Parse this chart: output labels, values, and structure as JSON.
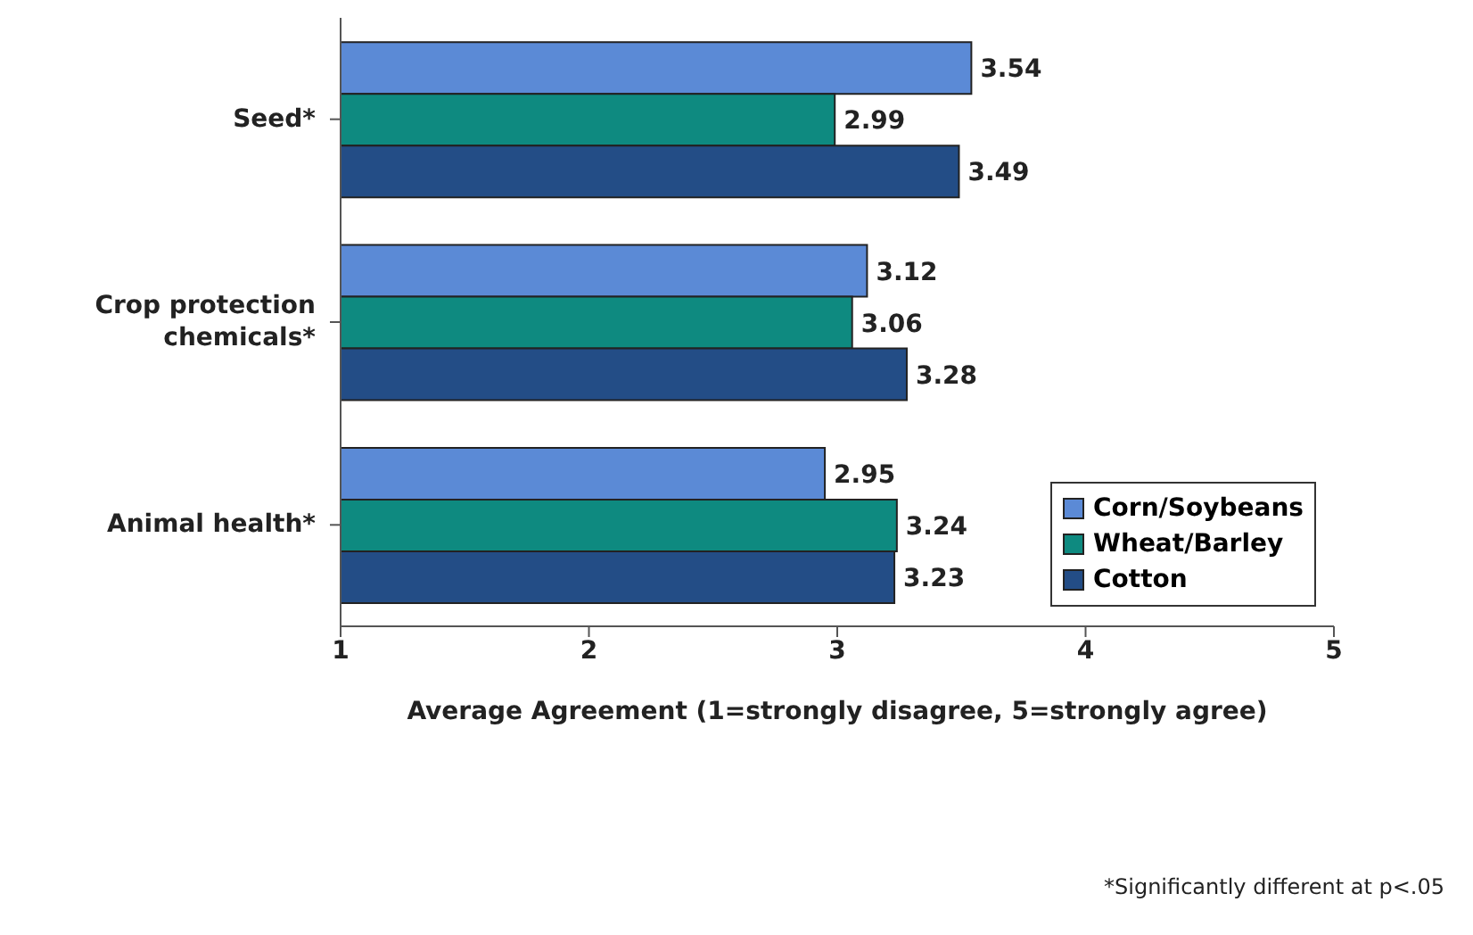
{
  "chart_data": {
    "type": "bar",
    "orientation": "horizontal",
    "categories": [
      "Seed*",
      "Crop protection chemicals*",
      "Animal health*"
    ],
    "series": [
      {
        "name": "Corn/Soybeans",
        "color": "#5b8ad6",
        "values": [
          3.54,
          3.12,
          2.95
        ]
      },
      {
        "name": "Wheat/Barley",
        "color": "#0e8a80",
        "values": [
          2.99,
          3.06,
          3.24
        ]
      },
      {
        "name": "Cotton",
        "color": "#234d86",
        "values": [
          3.49,
          3.28,
          3.23
        ]
      }
    ],
    "xlim": [
      1,
      5
    ],
    "xticks": [
      1,
      2,
      3,
      4,
      5
    ],
    "xlabel": "Average Agreement (1=strongly disagree, 5=strongly agree)",
    "data_labels": true,
    "legend": "bottom right",
    "grid": false,
    "annotations": [
      "*Significantly different at p<.05"
    ]
  }
}
